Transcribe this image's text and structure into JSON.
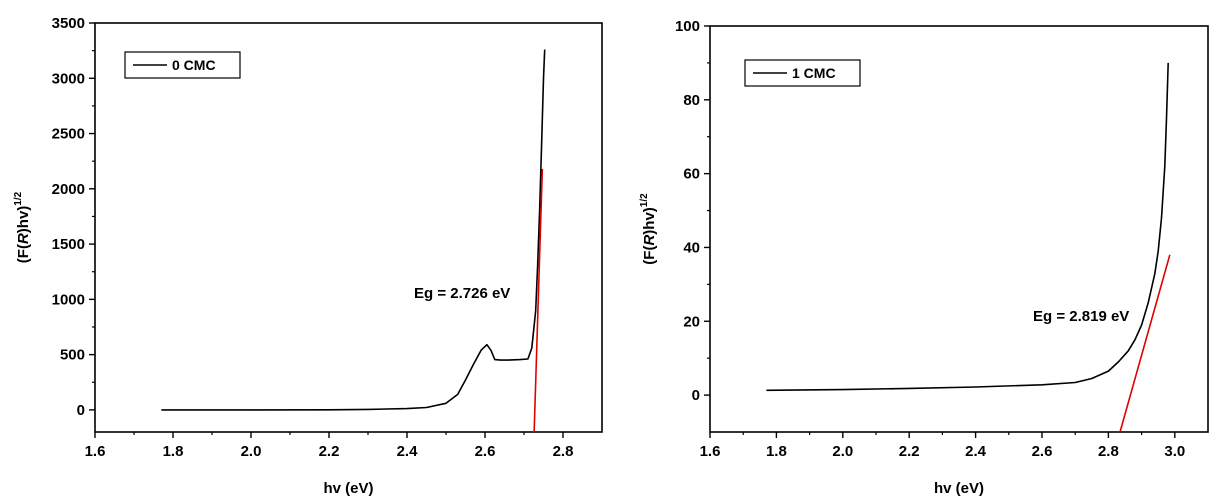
{
  "chart_data": [
    {
      "type": "line",
      "title": "",
      "xlabel": "hv (eV)",
      "ylabel_main": "(F(",
      "ylabel_italic": "R",
      "ylabel_tail": ")hv)",
      "ylabel_sup": "1/2",
      "xlim": [
        1.6,
        2.9
      ],
      "ylim": [
        -200,
        3500
      ],
      "xticks": [
        1.6,
        1.8,
        2.0,
        2.2,
        2.4,
        2.6,
        2.8
      ],
      "xtick_labels": [
        "1.6",
        "1.8",
        "2.0",
        "2.2",
        "2.4",
        "2.6",
        "2.8"
      ],
      "yticks": [
        0,
        500,
        1000,
        1500,
        2000,
        2500,
        3000,
        3500
      ],
      "ytick_labels": [
        "0",
        "500",
        "1000",
        "1500",
        "2000",
        "2500",
        "3000",
        "3500"
      ],
      "legend": {
        "position": "top-left",
        "entries": [
          "0 CMC"
        ]
      },
      "annotation": "Eg = 2.726 eV",
      "series": [
        {
          "name": "0 CMC",
          "color": "#000000",
          "x": [
            1.77,
            2.0,
            2.2,
            2.3,
            2.4,
            2.45,
            2.5,
            2.53,
            2.55,
            2.57,
            2.59,
            2.605,
            2.615,
            2.625,
            2.64,
            2.66,
            2.69,
            2.71,
            2.72,
            2.73,
            2.735,
            2.74,
            2.745,
            2.75,
            2.753
          ],
          "y": [
            0,
            0,
            1,
            4,
            12,
            22,
            60,
            140,
            270,
            410,
            540,
            590,
            540,
            455,
            450,
            450,
            455,
            460,
            560,
            900,
            1300,
            1800,
            2400,
            3000,
            3260
          ]
        }
      ],
      "fit_line": {
        "color": "#e00000",
        "x": [
          2.726,
          2.747
        ],
        "y": [
          -200,
          2180
        ]
      }
    },
    {
      "type": "line",
      "title": "",
      "xlabel": "hv (eV)",
      "ylabel_main": "(F(",
      "ylabel_italic": "R",
      "ylabel_tail": ")hv)",
      "ylabel_sup": "1/2",
      "xlim": [
        1.6,
        3.1
      ],
      "ylim": [
        -10,
        100
      ],
      "xticks": [
        1.6,
        1.8,
        2.0,
        2.2,
        2.4,
        2.6,
        2.8,
        3.0
      ],
      "xtick_labels": [
        "1.6",
        "1.8",
        "2.0",
        "2.2",
        "2.4",
        "2.6",
        "2.8",
        "3.0"
      ],
      "yticks": [
        0,
        20,
        40,
        60,
        80,
        100
      ],
      "ytick_labels": [
        "0",
        "20",
        "40",
        "60",
        "80",
        "100"
      ],
      "legend": {
        "position": "top-left",
        "entries": [
          "1 CMC"
        ]
      },
      "annotation": "Eg = 2.819 eV",
      "series": [
        {
          "name": "1 CMC",
          "color": "#000000",
          "x": [
            1.77,
            2.0,
            2.2,
            2.4,
            2.6,
            2.7,
            2.75,
            2.8,
            2.83,
            2.86,
            2.88,
            2.9,
            2.92,
            2.94,
            2.95,
            2.96,
            2.97,
            2.975,
            2.98
          ],
          "y": [
            1.3,
            1.5,
            1.8,
            2.2,
            2.8,
            3.4,
            4.5,
            6.5,
            9,
            12,
            15,
            19,
            25,
            33,
            39,
            48,
            62,
            75,
            90
          ]
        }
      ],
      "fit_line": {
        "color": "#e00000",
        "x": [
          2.835,
          2.985
        ],
        "y": [
          -10,
          38
        ]
      }
    }
  ]
}
